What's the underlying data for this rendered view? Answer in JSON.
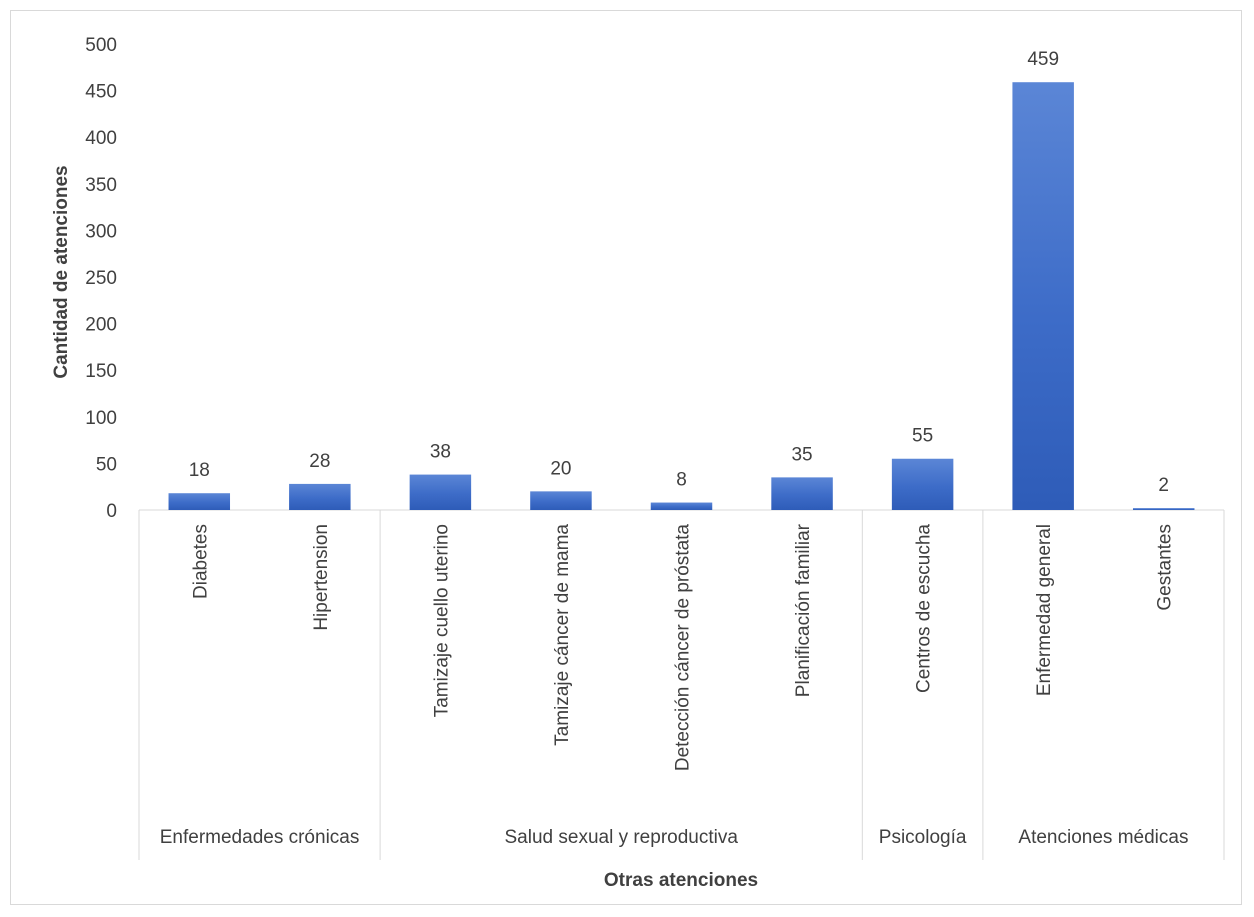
{
  "chart_data": {
    "type": "bar",
    "title": "",
    "xlabel": "Otras atenciones",
    "ylabel": "Cantidad de atenciones",
    "ylim": [
      0,
      500
    ],
    "yticks": [
      0,
      50,
      100,
      150,
      200,
      250,
      300,
      350,
      400,
      450,
      500
    ],
    "grid": false,
    "legend": "none",
    "bar_color": "#4472C4",
    "categories": [
      "Diabetes",
      "Hipertension",
      "Tamizaje cuello uterino",
      "Tamizaje cáncer de mama",
      "Detección cáncer de próstata",
      "Planificación familiar",
      "Centros de escucha",
      "Enfermedad general",
      "Gestantes"
    ],
    "values": [
      18,
      28,
      38,
      20,
      8,
      35,
      55,
      459,
      2
    ],
    "groups": [
      {
        "label": "Enfermedades crónicas",
        "count": 2
      },
      {
        "label": "Salud sexual y reproductiva",
        "count": 4
      },
      {
        "label": "Psicología",
        "count": 1
      },
      {
        "label": "Atenciones médicas",
        "count": 2
      }
    ]
  }
}
